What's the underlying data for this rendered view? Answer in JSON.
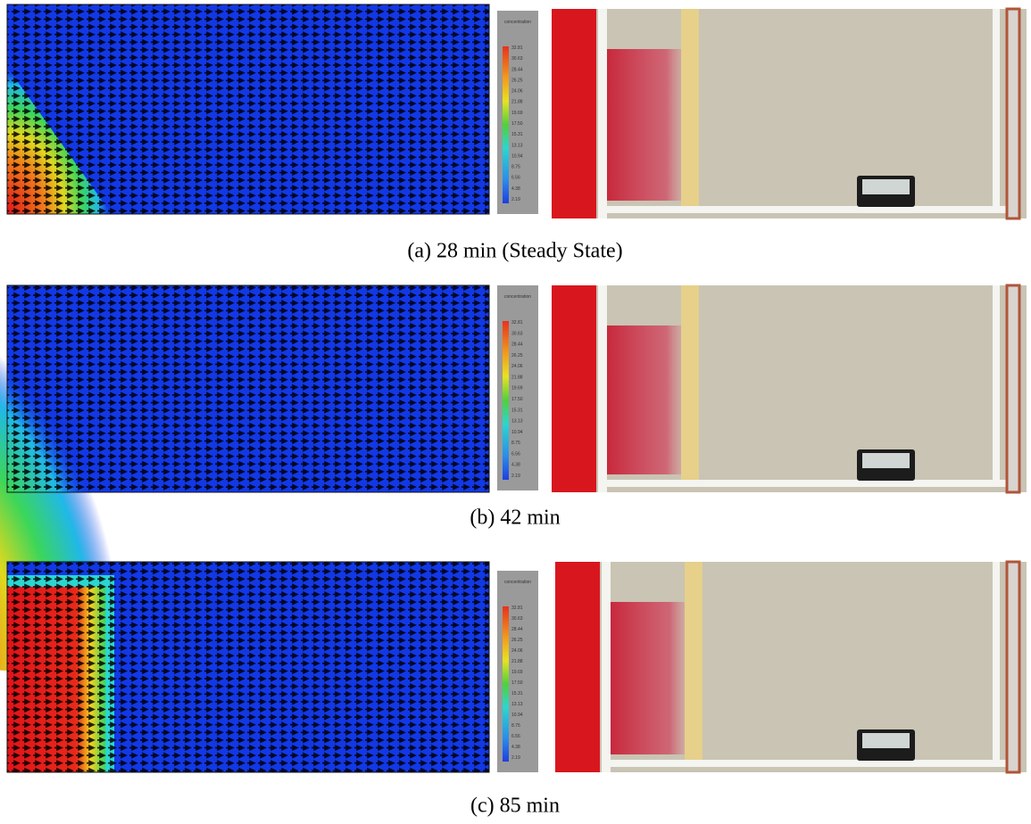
{
  "figure": {
    "panels": [
      {
        "caption": "(a) 28 min (Steady State)",
        "colorbar": {
          "title": "concentration",
          "labels": [
            "32.81",
            "30.63",
            "28.44",
            "26.25",
            "24.06",
            "21.88",
            "19.69",
            "17.50",
            "15.31",
            "13.13",
            "10.94",
            "8.75",
            "6.56",
            "4.38",
            "2.19"
          ]
        }
      },
      {
        "caption": "(b) 42 min",
        "colorbar": {
          "title": "concentration",
          "labels": [
            "32.81",
            "30.63",
            "28.44",
            "26.25",
            "24.06",
            "21.88",
            "19.69",
            "17.50",
            "15.31",
            "13.13",
            "10.94",
            "8.75",
            "6.56",
            "4.38",
            "2.19"
          ]
        }
      },
      {
        "caption": "(c) 85 min",
        "colorbar": {
          "title": "concentration",
          "labels": [
            "32.81",
            "30.63",
            "28.44",
            "26.25",
            "24.06",
            "21.88",
            "19.69",
            "17.50",
            "15.31",
            "13.13",
            "10.94",
            "8.75",
            "6.56",
            "4.38",
            "2.19"
          ]
        }
      }
    ]
  }
}
